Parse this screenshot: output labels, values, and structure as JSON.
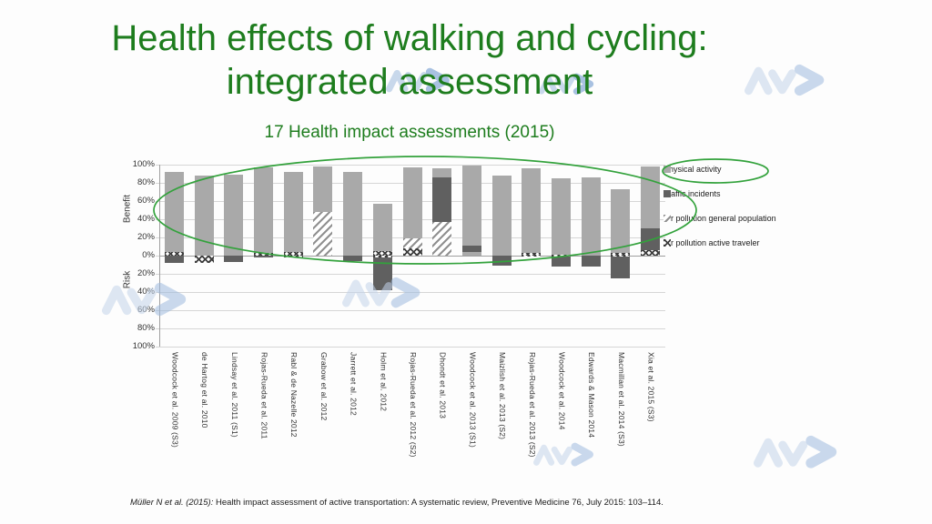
{
  "slide": {
    "title_line1": "Health effects of walking and cycling:",
    "title_line2": "integrated assessment",
    "footer": {
      "citation_prefix": "Müller N et al. (2015):",
      "citation_rest": " Health impact assessment of active transportation: A systematic review, Preventive Medicine 76, July 2015: 103–114."
    },
    "watermark_logo": "avz-logo"
  },
  "colors": {
    "title_green": "#1e7d1e",
    "annotation_green": "#33a23c",
    "bar_light_gray": "#a9a9a9",
    "bar_dark_gray": "#606060",
    "watermark_blue_light": "#c3d4ea",
    "watermark_blue_dark": "#9fbbdf",
    "gridline": "#d6d6d6"
  },
  "chart_data": {
    "type": "bar",
    "stacked": true,
    "diverging": true,
    "title": "17 Health impact assessments (2015)",
    "ylabel_positive": "Benefit",
    "ylabel_negative": "Risk",
    "y_tick_labels": [
      "100%",
      "80%",
      "60%",
      "40%",
      "20%",
      "0%",
      "20%",
      "40%",
      "60%",
      "80%",
      "100%"
    ],
    "ylim": [
      -100,
      100
    ],
    "grid": true,
    "legend_position": "right",
    "legend": [
      {
        "key": "pa",
        "label": "Physical activity"
      },
      {
        "key": "ti",
        "label": "Traffic incidents"
      },
      {
        "key": "ap_gen",
        "label": "Air pollution general population"
      },
      {
        "key": "ap_act",
        "label": "Air pollution active traveler"
      }
    ],
    "categories": [
      "Woodcock et al. 2009 (S3)",
      "de Hartog et al. 2010",
      "Lindsay et al. 2011 (S1)",
      "Rojas-Rueda et al. 2011",
      "Rabl & de Nazelle 2012",
      "Grabow et al. 2012",
      "Jarrett et al. 2012",
      "Holm et al. 2012",
      "Rojas-Rueda et al. 2012 (S2)",
      "Dhondt et al. 2013",
      "Woodcock et al. 2013 (S1)",
      "Maizlish et al. 2013 (S2)",
      "Rojas-Rueda et al. 2013 (S2)",
      "Woodcock et al. 2014",
      "Edwards & Mason 2014",
      "Macmillan et al. 2014 (S3)",
      "Xia et al. 2015 (S3)"
    ],
    "bars": [
      {
        "benefit": [
          {
            "key": "ap_act",
            "value": 4
          },
          {
            "key": "pa",
            "value": 88
          }
        ],
        "risk": [
          {
            "key": "ti",
            "value": 8
          }
        ]
      },
      {
        "benefit": [
          {
            "key": "pa",
            "value": 88
          }
        ],
        "risk": [
          {
            "key": "ap_act",
            "value": 8
          }
        ]
      },
      {
        "benefit": [
          {
            "key": "pa",
            "value": 89
          }
        ],
        "risk": [
          {
            "key": "ti",
            "value": 7
          }
        ]
      },
      {
        "benefit": [
          {
            "key": "ap_act",
            "value": 3
          },
          {
            "key": "pa",
            "value": 94
          }
        ],
        "risk": [
          {
            "key": "ti",
            "value": 2
          }
        ]
      },
      {
        "benefit": [
          {
            "key": "ap_act",
            "value": 4
          },
          {
            "key": "pa",
            "value": 88
          }
        ],
        "risk": [
          {
            "key": "ap_act",
            "value": 2
          }
        ]
      },
      {
        "benefit": [
          {
            "key": "ap_gen",
            "value": 48
          },
          {
            "key": "pa",
            "value": 50
          }
        ],
        "risk": []
      },
      {
        "benefit": [
          {
            "key": "pa",
            "value": 92
          }
        ],
        "risk": [
          {
            "key": "ti",
            "value": 6
          }
        ]
      },
      {
        "benefit": [
          {
            "key": "ap_act",
            "value": 5
          },
          {
            "key": "pa",
            "value": 52
          }
        ],
        "risk": [
          {
            "key": "ap_act",
            "value": 2
          },
          {
            "key": "ti",
            "value": 36
          }
        ]
      },
      {
        "benefit": [
          {
            "key": "ap_act",
            "value": 8
          },
          {
            "key": "ap_gen",
            "value": 11
          },
          {
            "key": "pa",
            "value": 78
          }
        ],
        "risk": []
      },
      {
        "benefit": [
          {
            "key": "ap_gen",
            "value": 37
          },
          {
            "key": "ti",
            "value": 49
          },
          {
            "key": "pa",
            "value": 10
          }
        ],
        "risk": []
      },
      {
        "benefit": [
          {
            "key": "pa",
            "value": 4
          },
          {
            "key": "ti",
            "value": 7
          },
          {
            "key": "pa",
            "value": 88
          }
        ],
        "risk": []
      },
      {
        "benefit": [
          {
            "key": "pa",
            "value": 88
          }
        ],
        "risk": [
          {
            "key": "ti",
            "value": 11
          }
        ]
      },
      {
        "benefit": [
          {
            "key": "ap_act",
            "value": 3
          },
          {
            "key": "pa",
            "value": 93
          }
        ],
        "risk": [
          {
            "key": "ap_act",
            "value": 1
          }
        ]
      },
      {
        "benefit": [
          {
            "key": "ap_act",
            "value": 1
          },
          {
            "key": "pa",
            "value": 84
          }
        ],
        "risk": [
          {
            "key": "ap_act",
            "value": 1
          },
          {
            "key": "ti",
            "value": 11
          }
        ]
      },
      {
        "benefit": [
          {
            "key": "pa",
            "value": 86
          }
        ],
        "risk": [
          {
            "key": "ti",
            "value": 12
          }
        ]
      },
      {
        "benefit": [
          {
            "key": "ap_act",
            "value": 3
          },
          {
            "key": "pa",
            "value": 70
          }
        ],
        "risk": [
          {
            "key": "ap_act",
            "value": 1
          },
          {
            "key": "ti",
            "value": 24
          }
        ]
      },
      {
        "benefit": [
          {
            "key": "ap_act",
            "value": 6
          },
          {
            "key": "ti",
            "value": 24
          },
          {
            "key": "pa",
            "value": 68
          }
        ],
        "risk": []
      }
    ],
    "annotations": [
      {
        "type": "ellipse",
        "target": "all-bars-benefit-area",
        "color": "#33a23c"
      },
      {
        "type": "ellipse",
        "target": "legend-physical-activity",
        "color": "#33a23c"
      }
    ]
  }
}
